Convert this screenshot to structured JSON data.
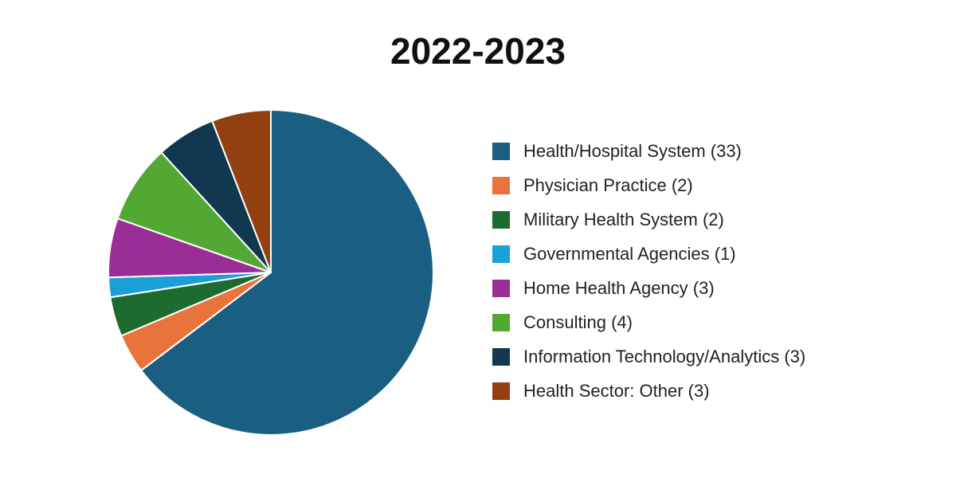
{
  "chart_data": {
    "type": "pie",
    "title": "2022-2023",
    "categories": [
      "Health/Hospital System (33)",
      "Physician Practice (2)",
      "Military Health System (2)",
      "Governmental Agencies (1)",
      "Home Health Agency (3)",
      "Consulting (4)",
      "Information Technology/Analytics (3)",
      "Health Sector: Other (3)"
    ],
    "values": [
      33,
      2,
      2,
      1,
      3,
      4,
      3,
      3
    ],
    "colors": [
      "#1a5e82",
      "#e8743b",
      "#1d6b2f",
      "#1a9fd6",
      "#9b2e96",
      "#52a833",
      "#11384f",
      "#934010"
    ],
    "legend": "right"
  }
}
